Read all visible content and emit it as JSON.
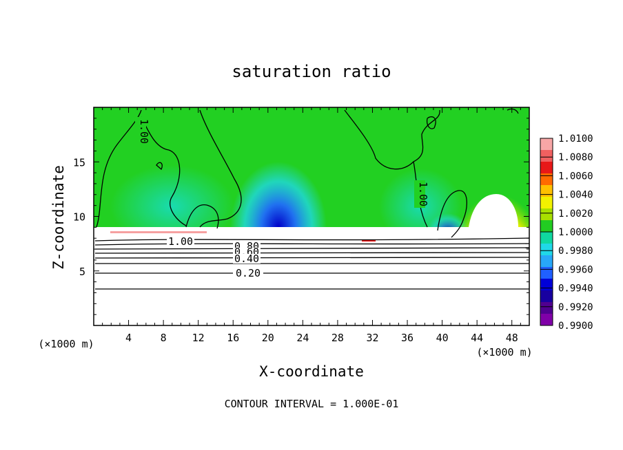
{
  "chart_data": {
    "type": "heatmap",
    "title": "saturation ratio",
    "xlabel": "X-coordinate",
    "ylabel": "Z-coordinate",
    "x_unit": "(×1000 m)",
    "x_unit_right": "(×1000 m)",
    "xlim": [
      0,
      50
    ],
    "ylim": [
      0,
      20
    ],
    "xticks": [
      "4",
      "8",
      "12",
      "16",
      "20",
      "24",
      "28",
      "32",
      "36",
      "40",
      "44",
      "48"
    ],
    "yticks": [
      "5",
      "10",
      "15"
    ],
    "colorbar": {
      "labels": [
        "1.0100",
        "1.0080",
        "1.0060",
        "1.0040",
        "1.0020",
        "1.0000",
        "0.9980",
        "0.9960",
        "0.9940",
        "0.9920",
        "0.9900"
      ],
      "colors": [
        "#f7a6a6",
        "#f06060",
        "#e81818",
        "#ff6a00",
        "#ffc000",
        "#f2f200",
        "#a8e000",
        "#22cc22",
        "#10d8a0",
        "#20d8e8",
        "#28a8f8",
        "#2060ff",
        "#0000d8",
        "#1800a0",
        "#500090",
        "#8000a8"
      ]
    },
    "contour_labels": [
      "1.00",
      "1.00",
      "1.00",
      "0.80",
      "0.60",
      "0.40",
      "0.20"
    ],
    "footer": "CONTOUR INTERVAL = 1.000E-01"
  }
}
